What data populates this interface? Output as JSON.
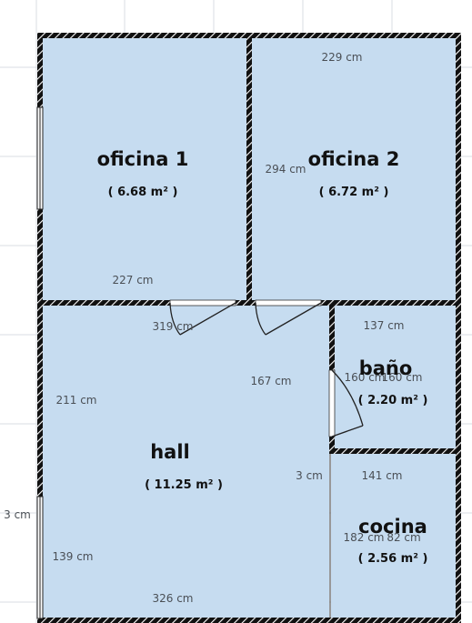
{
  "rooms": {
    "oficina1": {
      "name": "oficina 1",
      "area": "( 6.68 m² )"
    },
    "oficina2": {
      "name": "oficina 2",
      "area": "( 6.72 m² )"
    },
    "bano": {
      "name": "baño",
      "area": "( 2.20 m² )"
    },
    "hall": {
      "name": "hall",
      "area": "( 11.25 m² )"
    },
    "cocina": {
      "name": "cocina",
      "area": "( 2.56 m² )"
    }
  },
  "dimensions": {
    "d229": "229 cm",
    "d294": "294 cm",
    "d227": "227 cm",
    "d319": "319 cm",
    "d137": "137 cm",
    "d167": "167 cm",
    "d160": "160 cm",
    "d160b": "160 cm",
    "d211": "211 cm",
    "d3": "3 cm",
    "d141": "141 cm",
    "d3left": "3 cm",
    "d182": "182 cm",
    "d182b": "82 cm",
    "d139": "139 cm",
    "d326": "326 cm"
  },
  "colors": {
    "room_fill": "#c6dcf0",
    "wall": "#111111",
    "grid": "#d9dee3"
  }
}
